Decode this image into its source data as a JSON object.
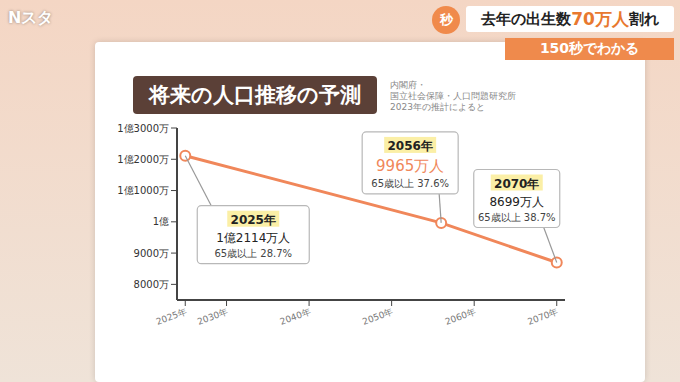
{
  "overlay": {
    "program": "Nスタ",
    "badge": "秒",
    "headline": [
      "去年の出生数",
      "70万人",
      "割れ"
    ],
    "subheadline": "150秒でわかる"
  },
  "chart_data": {
    "type": "line",
    "title": "将来の人口推移の予測",
    "source": [
      "内閣府・",
      "国立社会保障・人口問題研究所",
      "2023年の推計によると"
    ],
    "x": [
      2025,
      2056,
      2070
    ],
    "values": [
      12114,
      9965,
      8699
    ],
    "value_labels": [
      "1億2114万人",
      "9965万人",
      "8699万人"
    ],
    "point_labels": [
      "2025年",
      "2056年",
      "2070年"
    ],
    "annotations": [
      "65歳以上 28.7%",
      "65歳以上 37.6%",
      "65歳以上 38.7%"
    ],
    "color": "#f0875a",
    "marker": "circle",
    "data_labels": true,
    "grid": false,
    "xlim": [
      2024,
      2071
    ],
    "xticks": [
      {
        "value": 2025,
        "label": "2025年"
      },
      {
        "value": 2030,
        "label": "2030年"
      },
      {
        "value": 2040,
        "label": "2040年"
      },
      {
        "value": 2050,
        "label": "2050年"
      },
      {
        "value": 2060,
        "label": "2060年"
      },
      {
        "value": 2070,
        "label": "2070年"
      }
    ],
    "ylim": [
      7500,
      13000
    ],
    "yticks": [
      {
        "value": 8000,
        "label": "8000万"
      },
      {
        "value": 9000,
        "label": "9000万"
      },
      {
        "value": 10000,
        "label": "1億"
      },
      {
        "value": 11000,
        "label": "1億1000万"
      },
      {
        "value": 12000,
        "label": "1億2000万"
      },
      {
        "value": 13000,
        "label": "1億3000万"
      }
    ]
  }
}
